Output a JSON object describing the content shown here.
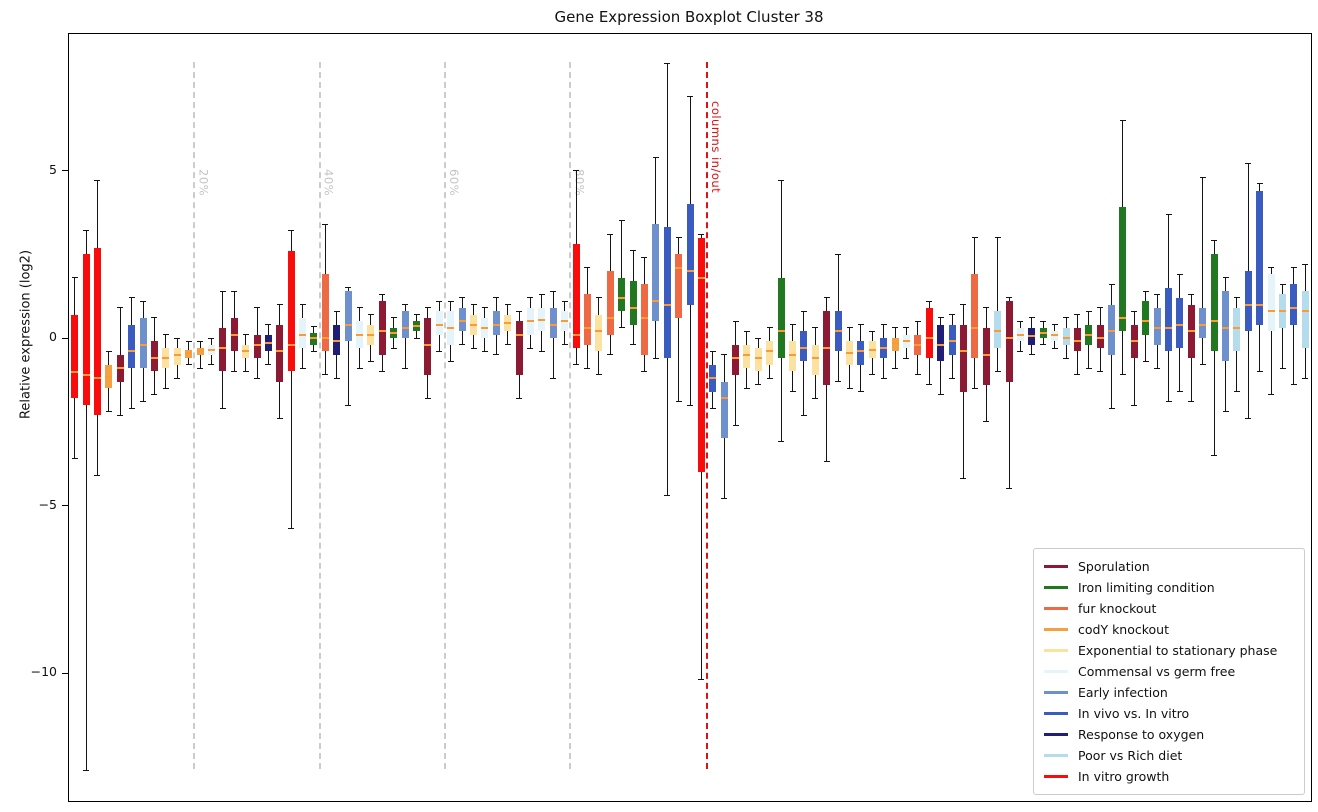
{
  "title": "Gene Expression Boxplot Cluster 38",
  "ylabel": "Relative expression (log2)",
  "chart_data": {
    "type": "boxplot",
    "title": "Gene Expression Boxplot Cluster 38",
    "xlabel": "",
    "ylabel": "Relative expression (log2)",
    "ylim": [
      -13.9,
      9.1
    ],
    "yticks": [
      5,
      0,
      -5,
      -10
    ],
    "grid": false,
    "whisker_color": "#141414",
    "median_color": "#ff9933",
    "legend_position": "lower right",
    "categories": [
      {
        "name": "Sporulation",
        "color": "#8b1a32"
      },
      {
        "name": "Iron limiting condition",
        "color": "#217821"
      },
      {
        "name": "fur knockout",
        "color": "#ed6a45"
      },
      {
        "name": "codY knockout",
        "color": "#f2a241"
      },
      {
        "name": "Exponential to stationary phase",
        "color": "#fbe2a0"
      },
      {
        "name": "Commensal vs germ free",
        "color": "#e4f4f9"
      },
      {
        "name": "Early infection",
        "color": "#6e90cd"
      },
      {
        "name": "In vivo vs. In vitro",
        "color": "#3a5bbf"
      },
      {
        "name": "Response to oxygen",
        "color": "#1f1f77"
      },
      {
        "name": "Poor vs Rich diet",
        "color": "#b4dcec"
      },
      {
        "name": "In vitro growth",
        "color": "#f80c0c"
      }
    ],
    "columns": [
      "category_index",
      "whisker_low",
      "q1",
      "median",
      "q3",
      "whisker_high"
    ],
    "boxes": [
      [
        10,
        -3.6,
        -1.8,
        -1.0,
        0.7,
        1.8
      ],
      [
        10,
        -12.9,
        -2.0,
        -1.1,
        2.5,
        3.2
      ],
      [
        10,
        -4.1,
        -2.3,
        -1.2,
        2.7,
        4.7
      ],
      [
        3,
        -2.2,
        -1.5,
        -1.15,
        -0.8,
        -0.4
      ],
      [
        0,
        -2.3,
        -1.3,
        -0.9,
        -0.5,
        0.9
      ],
      [
        7,
        -2.1,
        -0.9,
        -0.4,
        0.4,
        1.2
      ],
      [
        6,
        -1.9,
        -0.9,
        -0.2,
        0.6,
        1.1
      ],
      [
        0,
        -1.7,
        -1.0,
        -0.6,
        -0.1,
        0.6
      ],
      [
        4,
        -1.5,
        -0.9,
        -0.6,
        -0.3,
        0.1
      ],
      [
        4,
        -1.2,
        -0.8,
        -0.5,
        -0.3,
        0.0
      ],
      [
        3,
        -0.8,
        -0.6,
        -0.45,
        -0.35,
        -0.1
      ],
      [
        3,
        -0.9,
        -0.5,
        -0.4,
        -0.3,
        -0.1
      ],
      [
        5,
        -0.8,
        -0.5,
        -0.35,
        -0.2,
        0.0
      ],
      [
        0,
        -2.1,
        -1.0,
        -0.3,
        0.3,
        1.4
      ],
      [
        0,
        -1.0,
        -0.4,
        0.1,
        0.6,
        1.4
      ],
      [
        4,
        -1.0,
        -0.6,
        -0.4,
        -0.2,
        0.1
      ],
      [
        0,
        -1.2,
        -0.6,
        -0.2,
        0.1,
        0.9
      ],
      [
        8,
        -0.8,
        -0.4,
        -0.15,
        0.1,
        0.4
      ],
      [
        0,
        -2.4,
        -1.3,
        -0.4,
        0.4,
        1.0
      ],
      [
        10,
        -5.7,
        -1.0,
        -0.2,
        2.6,
        3.2
      ],
      [
        5,
        -0.9,
        -0.3,
        0.1,
        0.6,
        1.0
      ],
      [
        1,
        -0.4,
        -0.2,
        0.0,
        0.15,
        0.35
      ],
      [
        2,
        -1.1,
        -0.4,
        0.0,
        1.9,
        3.4
      ],
      [
        8,
        -1.2,
        -0.5,
        -0.1,
        0.4,
        0.8
      ],
      [
        6,
        -2.0,
        -0.1,
        0.4,
        1.4,
        1.5
      ],
      [
        5,
        -0.9,
        -0.3,
        0.1,
        0.5,
        0.9
      ],
      [
        4,
        -0.7,
        -0.2,
        0.1,
        0.4,
        0.7
      ],
      [
        0,
        -1.0,
        -0.5,
        0.2,
        1.1,
        1.3
      ],
      [
        1,
        -0.3,
        0.0,
        0.15,
        0.3,
        0.6
      ],
      [
        6,
        -0.9,
        0.0,
        0.3,
        0.8,
        1.0
      ],
      [
        1,
        0.0,
        0.2,
        0.35,
        0.5,
        0.7
      ],
      [
        0,
        -1.8,
        -1.1,
        -0.2,
        0.6,
        0.9
      ],
      [
        5,
        -0.4,
        0.1,
        0.4,
        0.8,
        1.1
      ],
      [
        5,
        -0.7,
        -0.2,
        0.3,
        0.8,
        1.1
      ],
      [
        6,
        -0.2,
        0.2,
        0.5,
        0.9,
        1.2
      ],
      [
        4,
        -0.3,
        0.1,
        0.4,
        0.7,
        1.0
      ],
      [
        5,
        -0.4,
        0.0,
        0.3,
        0.6,
        0.9
      ],
      [
        6,
        -0.5,
        0.1,
        0.4,
        0.8,
        1.2
      ],
      [
        4,
        -0.2,
        0.2,
        0.45,
        0.7,
        1.0
      ],
      [
        0,
        -1.8,
        -1.1,
        0.1,
        0.5,
        0.8
      ],
      [
        5,
        -0.3,
        0.1,
        0.5,
        0.9,
        1.2
      ],
      [
        5,
        -0.4,
        0.2,
        0.55,
        0.9,
        1.3
      ],
      [
        6,
        -1.2,
        0.0,
        0.4,
        0.9,
        1.4
      ],
      [
        5,
        -0.2,
        0.2,
        0.5,
        0.8,
        1.1
      ],
      [
        10,
        -0.8,
        -0.3,
        0.1,
        2.8,
        5.0
      ],
      [
        2,
        -0.9,
        -0.2,
        0.3,
        1.3,
        2.1
      ],
      [
        4,
        -1.1,
        -0.4,
        0.2,
        0.7,
        1.2
      ],
      [
        2,
        -0.5,
        0.1,
        0.6,
        2.0,
        3.1
      ],
      [
        1,
        0.3,
        0.8,
        1.2,
        1.8,
        3.5
      ],
      [
        1,
        -0.2,
        0.4,
        0.9,
        1.7,
        2.6
      ],
      [
        2,
        -1.0,
        -0.5,
        0.6,
        1.6,
        2.4
      ],
      [
        6,
        -0.6,
        0.5,
        1.1,
        3.4,
        5.4
      ],
      [
        7,
        -4.7,
        -0.6,
        1.0,
        3.3,
        8.2
      ],
      [
        2,
        -1.9,
        0.6,
        2.1,
        2.5,
        3.0
      ],
      [
        7,
        -2.0,
        1.0,
        2.0,
        4.0,
        7.2
      ],
      [
        10,
        -10.2,
        -4.0,
        1.8,
        3.0,
        3.1
      ],
      [
        7,
        -2.1,
        -1.6,
        -1.2,
        -0.8,
        -0.4
      ],
      [
        6,
        -4.8,
        -3.0,
        -1.8,
        -1.3,
        -0.5
      ],
      [
        0,
        -2.6,
        -1.1,
        -0.6,
        -0.2,
        0.5
      ],
      [
        4,
        -1.5,
        -0.9,
        -0.5,
        -0.2,
        0.2
      ],
      [
        4,
        -1.4,
        -1.0,
        -0.6,
        -0.3,
        0.0
      ],
      [
        4,
        -1.2,
        -0.8,
        -0.4,
        -0.1,
        0.3
      ],
      [
        1,
        -3.1,
        -0.6,
        0.2,
        1.8,
        4.7
      ],
      [
        4,
        -1.6,
        -1.0,
        -0.5,
        -0.1,
        0.4
      ],
      [
        7,
        -2.3,
        -0.7,
        -0.3,
        0.2,
        0.8
      ],
      [
        4,
        -1.8,
        -1.1,
        -0.6,
        -0.2,
        0.3
      ],
      [
        0,
        -3.7,
        -1.4,
        -0.3,
        0.8,
        1.2
      ],
      [
        7,
        -1.3,
        -0.4,
        0.2,
        0.8,
        2.5
      ],
      [
        4,
        -1.5,
        -0.8,
        -0.45,
        -0.1,
        0.3
      ],
      [
        7,
        -1.6,
        -0.8,
        -0.4,
        -0.1,
        0.4
      ],
      [
        4,
        -1.1,
        -0.6,
        -0.35,
        -0.1,
        0.2
      ],
      [
        7,
        -1.2,
        -0.6,
        -0.3,
        0.0,
        0.4
      ],
      [
        3,
        -0.9,
        -0.4,
        -0.15,
        0.0,
        0.3
      ],
      [
        5,
        -0.6,
        -0.3,
        -0.1,
        0.1,
        0.3
      ],
      [
        2,
        -1.1,
        -0.5,
        -0.2,
        0.1,
        0.5
      ],
      [
        10,
        -1.4,
        -0.6,
        0.0,
        0.9,
        1.1
      ],
      [
        8,
        -1.7,
        -0.7,
        -0.2,
        0.4,
        0.6
      ],
      [
        7,
        -1.2,
        -0.5,
        -0.1,
        0.4,
        0.7
      ],
      [
        0,
        -4.2,
        -1.6,
        -0.4,
        0.4,
        1.0
      ],
      [
        2,
        -1.5,
        -0.6,
        0.3,
        1.9,
        3.0
      ],
      [
        0,
        -2.5,
        -1.4,
        -0.5,
        0.3,
        0.9
      ],
      [
        9,
        -1.0,
        -0.3,
        0.2,
        0.8,
        3.0
      ],
      [
        0,
        -4.5,
        -1.3,
        0.0,
        1.1,
        1.2
      ],
      [
        5,
        -0.4,
        -0.1,
        0.1,
        0.3,
        0.5
      ],
      [
        8,
        -0.5,
        -0.2,
        0.05,
        0.3,
        0.6
      ],
      [
        1,
        -0.2,
        0.0,
        0.15,
        0.3,
        0.5
      ],
      [
        5,
        -0.3,
        -0.1,
        0.1,
        0.2,
        0.4
      ],
      [
        9,
        -0.6,
        -0.2,
        0.0,
        0.3,
        0.6
      ],
      [
        0,
        -1.1,
        -0.4,
        -0.1,
        0.3,
        0.7
      ],
      [
        1,
        -0.9,
        -0.2,
        0.1,
        0.4,
        0.8
      ],
      [
        0,
        -1.0,
        -0.3,
        0.0,
        0.4,
        0.9
      ],
      [
        6,
        -2.1,
        -0.5,
        0.2,
        1.0,
        1.6
      ],
      [
        1,
        -1.1,
        0.2,
        0.6,
        3.9,
        6.5
      ],
      [
        0,
        -2.0,
        -0.6,
        -0.1,
        0.4,
        0.8
      ],
      [
        1,
        -0.7,
        0.1,
        0.5,
        1.1,
        1.4
      ],
      [
        6,
        -0.9,
        -0.2,
        0.3,
        0.9,
        1.3
      ],
      [
        7,
        -1.9,
        -0.4,
        0.3,
        1.5,
        3.7
      ],
      [
        7,
        -1.6,
        -0.3,
        0.4,
        1.2,
        1.9
      ],
      [
        0,
        -1.9,
        -0.6,
        0.2,
        1.0,
        1.3
      ],
      [
        6,
        -0.8,
        0.0,
        0.4,
        0.9,
        4.8
      ],
      [
        1,
        -3.5,
        -0.4,
        0.5,
        2.5,
        2.9
      ],
      [
        6,
        -2.2,
        -0.7,
        0.3,
        1.4,
        1.8
      ],
      [
        9,
        -1.6,
        -0.4,
        0.3,
        0.9,
        1.2
      ],
      [
        7,
        -2.4,
        0.2,
        1.0,
        2.0,
        5.2
      ],
      [
        7,
        -1.0,
        0.4,
        1.0,
        4.4,
        4.6
      ],
      [
        5,
        -1.7,
        0.2,
        0.8,
        1.9,
        2.1
      ],
      [
        9,
        -0.9,
        0.3,
        0.8,
        1.3,
        1.6
      ],
      [
        7,
        -1.4,
        0.4,
        0.9,
        1.6,
        2.1
      ],
      [
        9,
        -1.2,
        -0.3,
        0.8,
        1.4,
        2.2
      ]
    ],
    "vlines": [
      {
        "label": "20%",
        "at_box": 11,
        "color": "#cccccc",
        "label_color": "#c4c4c4",
        "style": "dashed"
      },
      {
        "label": "40%",
        "at_box": 22,
        "color": "#cccccc",
        "label_color": "#c4c4c4",
        "style": "dashed"
      },
      {
        "label": "60%",
        "at_box": 33,
        "color": "#cccccc",
        "label_color": "#c4c4c4",
        "style": "dashed"
      },
      {
        "label": "80%",
        "at_box": 44,
        "color": "#cccccc",
        "label_color": "#c4c4c4",
        "style": "dashed"
      },
      {
        "label": "columns in/out",
        "at_box": 56,
        "color": "#dd1111",
        "label_color": "#dd1111",
        "style": "dashed"
      }
    ],
    "legend": {
      "entries": [
        "Sporulation",
        "Iron limiting condition",
        "fur knockout",
        "codY knockout",
        "Exponential to stationary phase",
        "Commensal vs germ free",
        "Early infection",
        "In vivo vs. In vitro",
        "Response to oxygen",
        "Poor vs Rich diet",
        "In vitro growth"
      ]
    }
  }
}
